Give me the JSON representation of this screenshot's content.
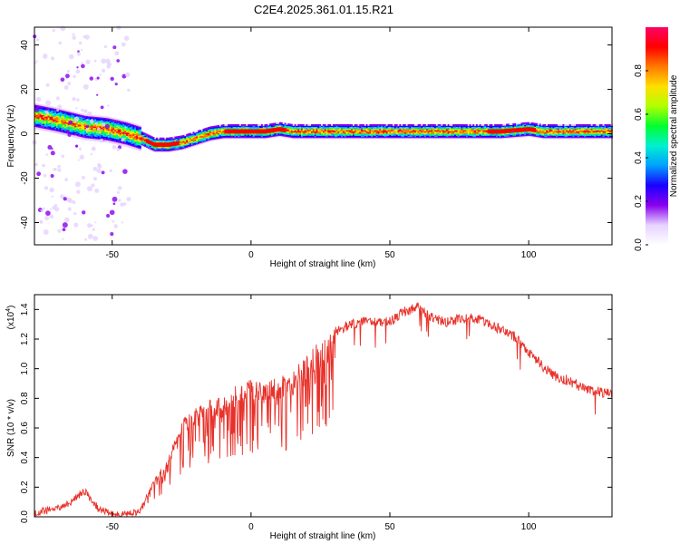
{
  "title": "C2E4.2025.361.01.15.R21",
  "chart_data": [
    {
      "type": "heatmap",
      "name": "spectrogram",
      "xlabel": "Height of straight line (km)",
      "ylabel": "Frequency (Hz)",
      "xlim": [
        -78,
        130
      ],
      "ylim": [
        -50,
        48
      ],
      "xticks": [
        -50,
        0,
        50,
        100
      ],
      "yticks": [
        -40,
        -20,
        0,
        20,
        40
      ],
      "ridge": {
        "x": [
          -78,
          -70,
          -60,
          -52,
          -45,
          -40,
          -35,
          -30,
          -25,
          -20,
          -15,
          -10,
          -5,
          0,
          5,
          10,
          15,
          20,
          30,
          40,
          50,
          60,
          70,
          80,
          90,
          100,
          105,
          110,
          120,
          130
        ],
        "y": [
          8,
          6,
          3,
          2,
          0,
          -2,
          -5,
          -5,
          -4,
          -2,
          0,
          1,
          1,
          1,
          1,
          2,
          1,
          1,
          1,
          1,
          1,
          1,
          1,
          1,
          1,
          2,
          1,
          1,
          1,
          1
        ]
      },
      "colorbar": {
        "label": "Normalized spectral amplitude",
        "range": [
          0,
          1
        ],
        "ticks": [
          "0.0",
          "0.2",
          "0.4",
          "0.6",
          "0.8"
        ],
        "colors": [
          "#ffffff",
          "#e6d2ff",
          "#8800ee",
          "#1a00ff",
          "#00a0ff",
          "#00f0d0",
          "#00ff30",
          "#b0ff00",
          "#ffe000",
          "#ff7a00",
          "#ff0000",
          "#ff0066"
        ]
      }
    },
    {
      "type": "line",
      "name": "snr",
      "xlabel": "Height of straight line (km)",
      "ylabel": "SNR (10 * v/v)",
      "yscale_label_base": "(x10",
      "yscale_label_exp": "4",
      "yscale_label_close": ")",
      "xlim": [
        -78,
        130
      ],
      "ylim": [
        0,
        1.5
      ],
      "xticks": [
        -50,
        0,
        50,
        100
      ],
      "yticks": [
        "0.0",
        "0.2",
        "0.4",
        "0.6",
        "0.8",
        "1.0",
        "1.2",
        "1.4"
      ],
      "color": "#e8312a",
      "envelope": {
        "x": [
          -78,
          -70,
          -65,
          -60,
          -55,
          -50,
          -45,
          -40,
          -35,
          -30,
          -25,
          -20,
          -15,
          -10,
          -5,
          0,
          5,
          10,
          15,
          20,
          25,
          30,
          35,
          40,
          45,
          50,
          55,
          60,
          65,
          70,
          75,
          80,
          85,
          90,
          95,
          100,
          105,
          110,
          115,
          120,
          125,
          130
        ],
        "y": [
          0.05,
          0.08,
          0.12,
          0.2,
          0.08,
          0.04,
          0.04,
          0.06,
          0.25,
          0.4,
          0.65,
          0.75,
          0.8,
          0.8,
          0.9,
          0.95,
          0.9,
          0.95,
          1.0,
          1.1,
          1.2,
          1.28,
          1.33,
          1.35,
          1.35,
          1.35,
          1.42,
          1.45,
          1.38,
          1.35,
          1.37,
          1.38,
          1.35,
          1.3,
          1.25,
          1.15,
          1.05,
          0.98,
          0.95,
          0.9,
          0.88,
          0.86
        ]
      }
    }
  ]
}
